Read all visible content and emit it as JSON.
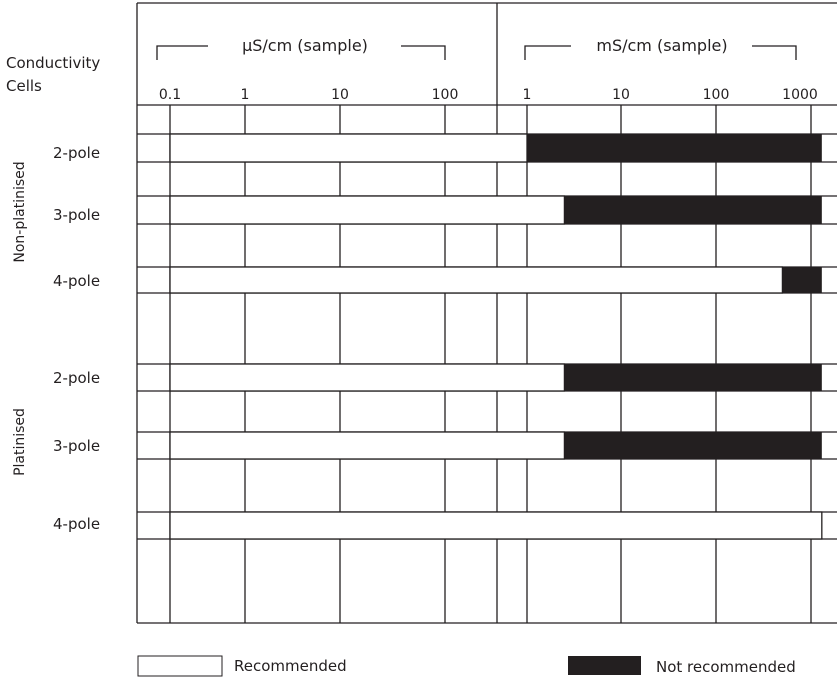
{
  "header": {
    "column_title_line1": "Conductivity",
    "column_title_line2": "Cells",
    "left_scale_label": "µS/cm (sample)",
    "right_scale_label": "mS/cm (sample)"
  },
  "groups": [
    {
      "label": "Non-platinised"
    },
    {
      "label": "Platinised"
    }
  ],
  "legend": {
    "recommended": "Recommended",
    "not_recommended": "Not recommended"
  },
  "colors": {
    "recommended_fill": "#ffffff",
    "not_recommended_fill": "#231f20",
    "ink": "#231f20"
  },
  "chart_data": {
    "type": "bar",
    "orientation": "horizontal",
    "scale": "log",
    "axes": [
      {
        "label": "µS/cm (sample)",
        "ticks": [
          "0.1",
          "1",
          "10",
          "100"
        ]
      },
      {
        "label": "mS/cm (sample)",
        "ticks": [
          "1",
          "10",
          "100",
          "1000"
        ]
      }
    ],
    "categories": [
      "2-pole",
      "3-pole",
      "4-pole",
      "2-pole",
      "3-pole",
      "4-pole"
    ],
    "category_groups": [
      "Non-platinised",
      "Non-platinised",
      "Non-platinised",
      "Platinised",
      "Platinised",
      "Platinised"
    ],
    "series": [
      {
        "name": "Recommended",
        "from_uS_cm": [
          0.1,
          0.1,
          0.1,
          0.1,
          0.1,
          0.1
        ],
        "to_uS_cm": [
          1000,
          2500,
          500000,
          2500,
          2500,
          1300000
        ]
      },
      {
        "name": "Not recommended",
        "from_uS_cm": [
          1000,
          2500,
          500000,
          2500,
          2500,
          null
        ],
        "to_uS_cm": [
          1300000,
          1300000,
          1300000,
          1300000,
          1300000,
          null
        ]
      }
    ],
    "grid": true,
    "legend_position": "bottom"
  }
}
